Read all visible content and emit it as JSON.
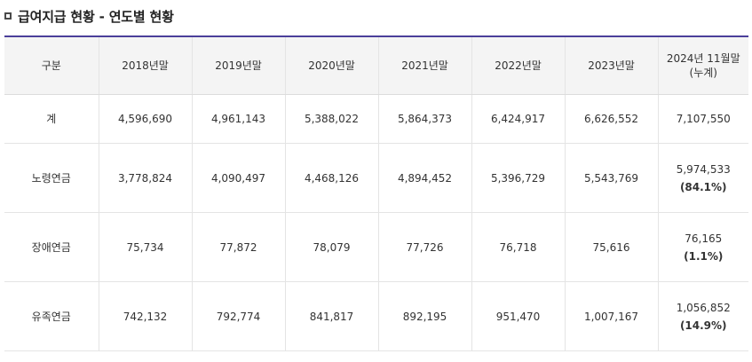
{
  "heading": "급여지급 현황 - 연도별 현황",
  "table": {
    "header": {
      "category": "구분",
      "y2018": "2018년말",
      "y2019": "2019년말",
      "y2020": "2020년말",
      "y2021": "2021년말",
      "y2022": "2022년말",
      "y2023": "2023년말",
      "y2024_line1": "2024년 11월말",
      "y2024_line2": "(누계)"
    },
    "rows": [
      {
        "label": "계",
        "values": [
          "4,596,690",
          "4,961,143",
          "5,388,022",
          "5,864,373",
          "6,424,917",
          "6,626,552"
        ],
        "latest": "7,107,550",
        "share": ""
      },
      {
        "label": "노령연금",
        "values": [
          "3,778,824",
          "4,090,497",
          "4,468,126",
          "4,894,452",
          "5,396,729",
          "5,543,769"
        ],
        "latest": "5,974,533",
        "share": "(84.1%)"
      },
      {
        "label": "장애연금",
        "values": [
          "75,734",
          "77,872",
          "78,079",
          "77,726",
          "76,718",
          "75,616"
        ],
        "latest": "76,165",
        "share": "(1.1%)"
      },
      {
        "label": "유족연금",
        "values": [
          "742,132",
          "792,774",
          "841,817",
          "892,195",
          "951,470",
          "1,007,167"
        ],
        "latest": "1,056,852",
        "share": "(14.9%)"
      }
    ]
  },
  "colors": {
    "header_top_border": "#4b3f9a",
    "header_background": "#f4f4f4"
  }
}
